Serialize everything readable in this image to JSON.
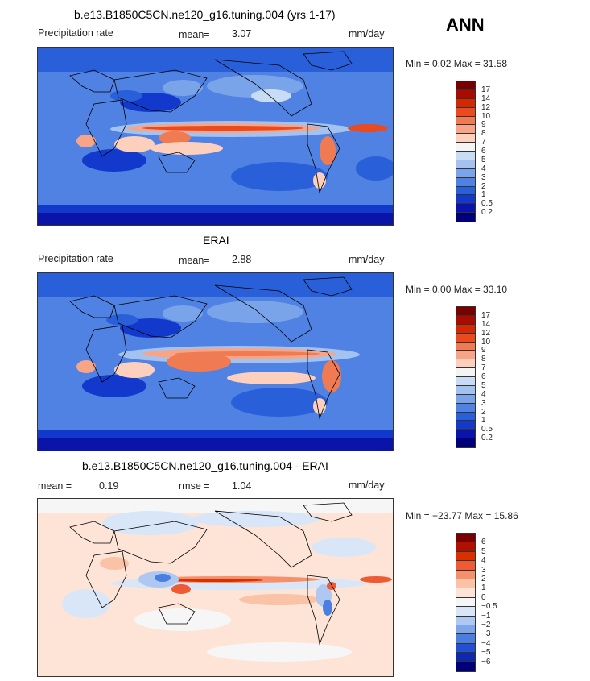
{
  "season": "ANN",
  "panels": [
    {
      "title": "b.e13.B1850C5CN.ne120_g16.tuning.004 (yrs 1-17)",
      "left_label": "Precipitation rate",
      "mid_label": "mean=",
      "mid_value": "3.07",
      "units": "mm/day",
      "minmax": "Min =   0.02 Max =  31.58",
      "levels": [
        "17",
        "14",
        "12",
        "10",
        "9",
        "8",
        "7",
        "6",
        "5",
        "4",
        "3",
        "2",
        "1",
        "0.5",
        "0.2"
      ],
      "colors": [
        "#7a0000",
        "#a80c00",
        "#d42800",
        "#ea4a1e",
        "#f07a52",
        "#f7a586",
        "#fcd0bc",
        "#f4f4f4",
        "#c8dcf6",
        "#a4c2f0",
        "#7aa4ea",
        "#4f82e2",
        "#2a5fda",
        "#1238cc",
        "#0a14a8",
        "#00007a"
      ],
      "ocean_color": "#4f82e2"
    },
    {
      "title": "ERAI",
      "left_label": "Precipitation rate",
      "mid_label": "mean=",
      "mid_value": "2.88",
      "units": "mm/day",
      "minmax": "Min =   0.00 Max =  33.10",
      "levels": [
        "17",
        "14",
        "12",
        "10",
        "9",
        "8",
        "7",
        "6",
        "5",
        "4",
        "3",
        "2",
        "1",
        "0.5",
        "0.2"
      ],
      "colors": [
        "#7a0000",
        "#a80c00",
        "#d42800",
        "#ea4a1e",
        "#f07a52",
        "#f7a586",
        "#fcd0bc",
        "#f4f4f4",
        "#c8dcf6",
        "#a4c2f0",
        "#7aa4ea",
        "#4f82e2",
        "#2a5fda",
        "#1238cc",
        "#0a14a8",
        "#00007a"
      ],
      "ocean_color": "#4f82e2"
    },
    {
      "title": "b.e13.B1850C5CN.ne120_g16.tuning.004 - ERAI",
      "left_label": "mean =",
      "left_value": "0.19",
      "mid_label": "rmse =",
      "mid_value": "1.04",
      "units": "mm/day",
      "minmax": "Min = −23.77 Max =  15.86",
      "levels": [
        "6",
        "5",
        "4",
        "3",
        "2",
        "1",
        "0",
        "−0.5",
        "−1",
        "−2",
        "−3",
        "−4",
        "−5",
        "−6"
      ],
      "colors": [
        "#7a0000",
        "#b01000",
        "#d83000",
        "#ee5a34",
        "#f5906a",
        "#fac2a6",
        "#fde4d6",
        "#f6f6f6",
        "#d8e6f8",
        "#aec8f2",
        "#7ea6ea",
        "#4a7ee0",
        "#2250d0",
        "#0e28b0",
        "#00007a"
      ],
      "ocean_color": "#fde4d6"
    }
  ]
}
